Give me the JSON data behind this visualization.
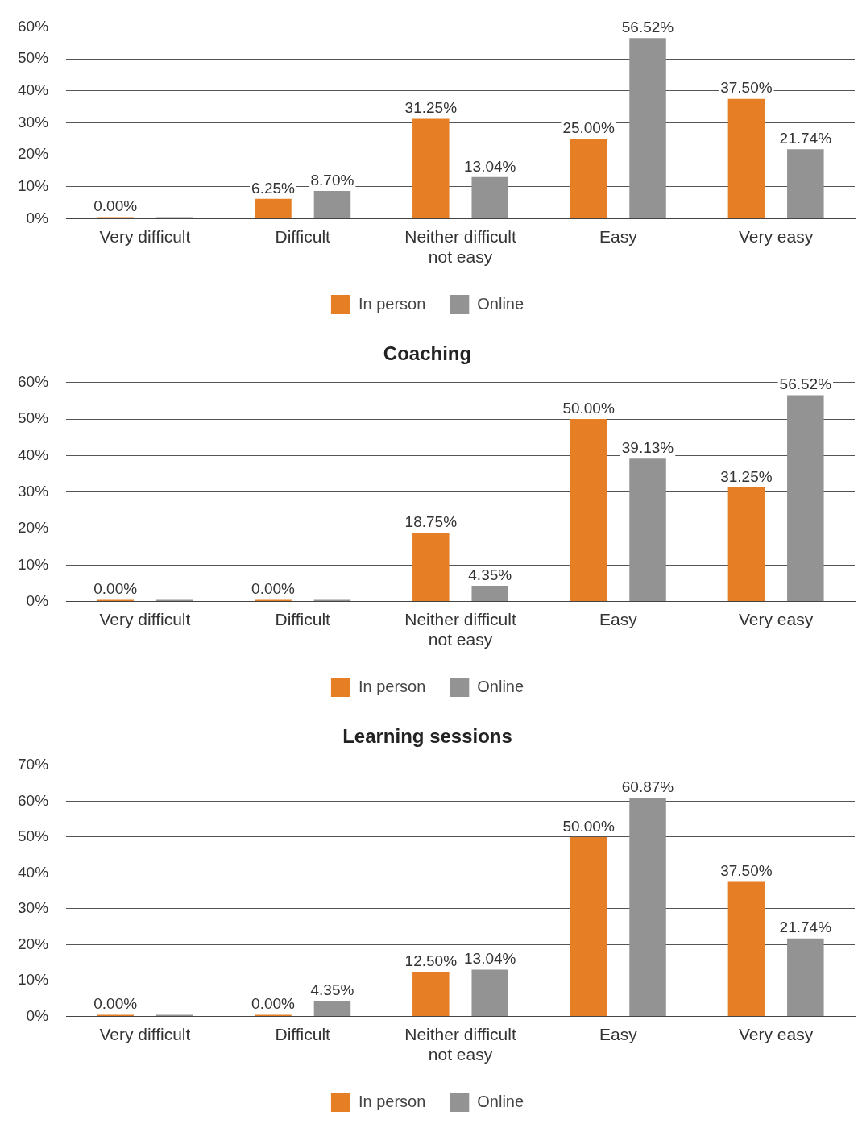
{
  "chart_data": [
    {
      "type": "bar",
      "categories": [
        "Very difficult",
        "Difficult",
        "Neither difficult not easy",
        "Easy",
        "Very easy"
      ],
      "series": [
        {
          "name": "In person",
          "color": "#e57e25",
          "values": [
            0,
            6.25,
            31.25,
            25,
            37.5
          ],
          "value_labels": [
            "0.00%",
            "6.25%",
            "31.25%",
            "25.00%",
            "37.50%"
          ]
        },
        {
          "name": "Online",
          "color": "#939393",
          "values": [
            0,
            8.7,
            13.04,
            56.52,
            21.74
          ],
          "value_labels": [
            null,
            "8.70%",
            "13.04%",
            "56.52%",
            "21.74%"
          ]
        }
      ],
      "ylim": [
        0,
        60
      ],
      "yticks": [
        {
          "value": 0,
          "label": "0%"
        },
        {
          "value": 10,
          "label": "10%"
        },
        {
          "value": 20,
          "label": "20%"
        },
        {
          "value": 30,
          "label": "30%"
        },
        {
          "value": 40,
          "label": "40%"
        },
        {
          "value": 50,
          "label": "50%"
        },
        {
          "value": 60,
          "label": "60%"
        }
      ],
      "grid": "y",
      "legend": "bottom"
    },
    {
      "type": "bar",
      "title": "Coaching",
      "categories": [
        "Very difficult",
        "Difficult",
        "Neither difficult not easy",
        "Easy",
        "Very easy"
      ],
      "series": [
        {
          "name": "In person",
          "color": "#e57e25",
          "values": [
            0,
            0,
            18.75,
            50,
            31.25
          ],
          "value_labels": [
            "0.00%",
            "0.00%",
            "18.75%",
            "50.00%",
            "31.25%"
          ]
        },
        {
          "name": "Online",
          "color": "#939393",
          "values": [
            0,
            0,
            4.35,
            39.13,
            56.52
          ],
          "value_labels": [
            null,
            null,
            "4.35%",
            "39.13%",
            "56.52%"
          ]
        }
      ],
      "ylim": [
        0,
        60
      ],
      "yticks": [
        {
          "value": 0,
          "label": "0%"
        },
        {
          "value": 10,
          "label": "10%"
        },
        {
          "value": 20,
          "label": "20%"
        },
        {
          "value": 30,
          "label": "30%"
        },
        {
          "value": 40,
          "label": "40%"
        },
        {
          "value": 50,
          "label": "50%"
        },
        {
          "value": 60,
          "label": "60%"
        }
      ],
      "grid": "y",
      "legend": "bottom"
    },
    {
      "type": "bar",
      "title": "Learning sessions",
      "categories": [
        "Very difficult",
        "Difficult",
        "Neither difficult not easy",
        "Easy",
        "Very easy"
      ],
      "series": [
        {
          "name": "In person",
          "color": "#e57e25",
          "values": [
            0,
            0,
            12.5,
            50,
            37.5
          ],
          "value_labels": [
            "0.00%",
            "0.00%",
            "12.50%",
            "50.00%",
            "37.50%"
          ]
        },
        {
          "name": "Online",
          "color": "#939393",
          "values": [
            0,
            4.35,
            13.04,
            60.87,
            21.74
          ],
          "value_labels": [
            null,
            "4.35%",
            "13.04%",
            "60.87%",
            "21.74%"
          ]
        }
      ],
      "ylim": [
        0,
        70
      ],
      "yticks": [
        {
          "value": 0,
          "label": "0%"
        },
        {
          "value": 10,
          "label": "10%"
        },
        {
          "value": 20,
          "label": "20%"
        },
        {
          "value": 30,
          "label": "30%"
        },
        {
          "value": 40,
          "label": "40%"
        },
        {
          "value": 50,
          "label": "50%"
        },
        {
          "value": 60,
          "label": "60%"
        },
        {
          "value": 70,
          "label": "70%"
        }
      ],
      "grid": "y",
      "legend": "bottom"
    }
  ]
}
